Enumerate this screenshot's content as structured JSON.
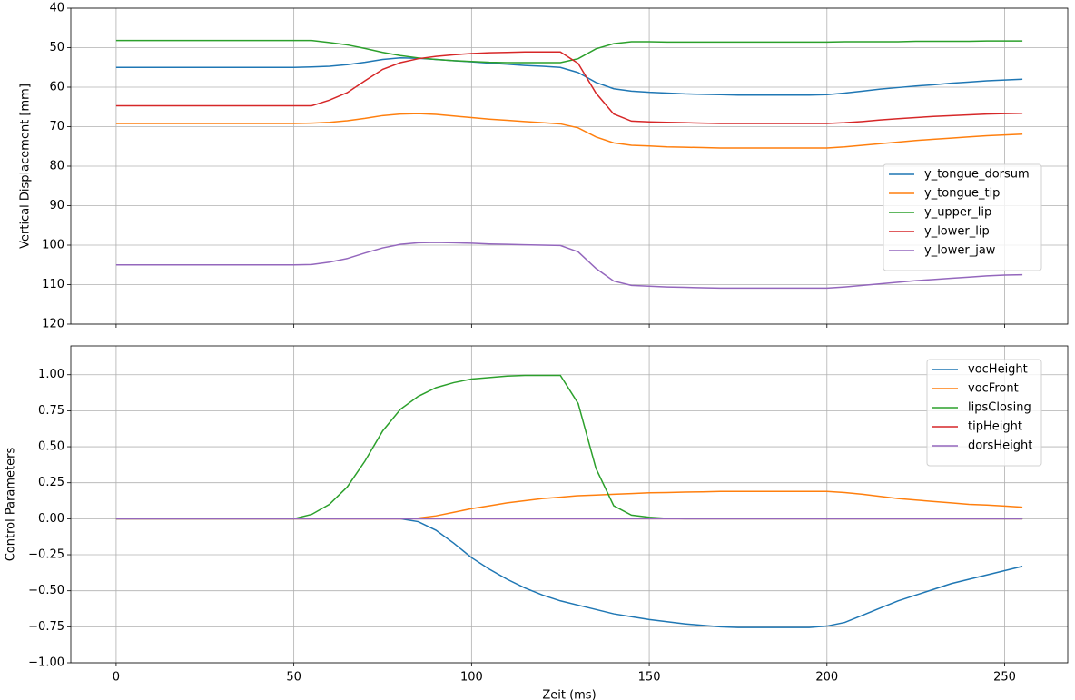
{
  "chart_data": [
    {
      "type": "line",
      "y_label": "Vertical Displacement [mm]",
      "x": [
        0,
        5,
        10,
        15,
        20,
        25,
        30,
        35,
        40,
        45,
        50,
        55,
        60,
        65,
        70,
        75,
        80,
        85,
        90,
        95,
        100,
        105,
        110,
        115,
        120,
        125,
        130,
        135,
        140,
        145,
        150,
        155,
        160,
        165,
        170,
        175,
        180,
        185,
        190,
        195,
        200,
        205,
        210,
        215,
        220,
        225,
        230,
        235,
        240,
        245,
        250,
        255
      ],
      "xlim": [
        -12.75,
        267.75
      ],
      "xticks": [
        0,
        50,
        100,
        150,
        200,
        250
      ],
      "ylim": [
        120,
        40
      ],
      "yticks": [
        40,
        50,
        60,
        70,
        80,
        90,
        100,
        110,
        120
      ],
      "y_inverted": true,
      "grid": true,
      "legend": "best",
      "series": [
        {
          "name": "y_tongue_dorsum",
          "color": "#1f77b4",
          "values": [
            55,
            55,
            55,
            55,
            55,
            55,
            55,
            55,
            55,
            55,
            55,
            54.9,
            54.7,
            54.3,
            53.7,
            53,
            52.6,
            52.7,
            53,
            53.3,
            53.6,
            53.9,
            54.2,
            54.5,
            54.7,
            55,
            56.3,
            58.8,
            60.4,
            61,
            61.3,
            61.5,
            61.7,
            61.8,
            61.9,
            62,
            62,
            62,
            62,
            62,
            61.9,
            61.5,
            61,
            60.5,
            60.1,
            59.7,
            59.4,
            59,
            58.7,
            58.4,
            58.2,
            58
          ]
        },
        {
          "name": "y_tongue_tip",
          "color": "#ff7f0e",
          "values": [
            69.2,
            69.2,
            69.2,
            69.2,
            69.2,
            69.2,
            69.2,
            69.2,
            69.2,
            69.2,
            69.2,
            69.1,
            68.9,
            68.5,
            67.9,
            67.2,
            66.8,
            66.7,
            66.9,
            67.3,
            67.7,
            68.1,
            68.4,
            68.7,
            69,
            69.3,
            70.3,
            72.6,
            74.1,
            74.7,
            74.9,
            75.1,
            75.2,
            75.3,
            75.4,
            75.4,
            75.4,
            75.4,
            75.4,
            75.4,
            75.4,
            75.1,
            74.7,
            74.3,
            73.9,
            73.5,
            73.2,
            72.9,
            72.6,
            72.3,
            72.1,
            71.9
          ]
        },
        {
          "name": "y_upper_lip",
          "color": "#2ca02c",
          "values": [
            48.2,
            48.2,
            48.2,
            48.2,
            48.2,
            48.2,
            48.2,
            48.2,
            48.2,
            48.2,
            48.2,
            48.2,
            48.7,
            49.3,
            50.2,
            51.2,
            52,
            52.6,
            53,
            53.3,
            53.5,
            53.7,
            53.8,
            53.8,
            53.8,
            53.8,
            52.8,
            50.3,
            49,
            48.5,
            48.5,
            48.6,
            48.6,
            48.6,
            48.6,
            48.6,
            48.6,
            48.6,
            48.6,
            48.6,
            48.6,
            48.5,
            48.5,
            48.5,
            48.5,
            48.4,
            48.4,
            48.4,
            48.4,
            48.3,
            48.3,
            48.3
          ]
        },
        {
          "name": "y_lower_lip",
          "color": "#d62728",
          "values": [
            64.7,
            64.7,
            64.7,
            64.7,
            64.7,
            64.7,
            64.7,
            64.7,
            64.7,
            64.7,
            64.7,
            64.7,
            63.3,
            61.4,
            58.4,
            55.5,
            53.8,
            52.8,
            52.2,
            51.8,
            51.5,
            51.3,
            51.2,
            51.1,
            51.1,
            51.1,
            54,
            61.5,
            66.8,
            68.6,
            68.8,
            68.9,
            69,
            69.1,
            69.2,
            69.2,
            69.2,
            69.2,
            69.2,
            69.2,
            69.2,
            69,
            68.7,
            68.3,
            68,
            67.7,
            67.4,
            67.2,
            67,
            66.8,
            66.7,
            66.6
          ]
        },
        {
          "name": "y_lower_jaw",
          "color": "#9467bd",
          "values": [
            105,
            105,
            105,
            105,
            105,
            105,
            105,
            105,
            105,
            105,
            105,
            104.9,
            104.3,
            103.4,
            102,
            100.7,
            99.8,
            99.4,
            99.3,
            99.4,
            99.5,
            99.7,
            99.8,
            99.9,
            100,
            100.1,
            101.7,
            105.9,
            109.1,
            110.2,
            110.4,
            110.6,
            110.7,
            110.8,
            110.9,
            110.9,
            110.9,
            110.9,
            110.9,
            110.9,
            110.9,
            110.6,
            110.2,
            109.8,
            109.4,
            109,
            108.7,
            108.4,
            108.1,
            107.8,
            107.6,
            107.5
          ]
        }
      ]
    },
    {
      "type": "line",
      "x_label": "Zeit (ms)",
      "y_label": "Control Parameters",
      "x": [
        0,
        5,
        10,
        15,
        20,
        25,
        30,
        35,
        40,
        45,
        50,
        55,
        60,
        65,
        70,
        75,
        80,
        85,
        90,
        95,
        100,
        105,
        110,
        115,
        120,
        125,
        130,
        135,
        140,
        145,
        150,
        155,
        160,
        165,
        170,
        175,
        180,
        185,
        190,
        195,
        200,
        205,
        210,
        215,
        220,
        225,
        230,
        235,
        240,
        245,
        250,
        255
      ],
      "xlim": [
        -12.75,
        267.75
      ],
      "xticks": [
        0,
        50,
        100,
        150,
        200,
        250
      ],
      "ylim": [
        -1,
        1.2
      ],
      "yticks": [
        {
          "value": -1,
          "label": "−1.00"
        },
        {
          "value": -0.75,
          "label": "−0.75"
        },
        {
          "value": -0.5,
          "label": "−0.50"
        },
        {
          "value": -0.25,
          "label": "−0.25"
        },
        {
          "value": 0,
          "label": "0.00"
        },
        {
          "value": 0.25,
          "label": "0.25"
        },
        {
          "value": 0.5,
          "label": "0.50"
        },
        {
          "value": 0.75,
          "label": "0.75"
        },
        {
          "value": 1,
          "label": "1.00"
        }
      ],
      "grid": true,
      "legend": "upper right",
      "series": [
        {
          "name": "vocHeight",
          "color": "#1f77b4",
          "values": [
            0,
            0,
            0,
            0,
            0,
            0,
            0,
            0,
            0,
            0,
            0,
            0,
            0,
            0,
            0,
            0,
            0,
            -0.02,
            -0.08,
            -0.17,
            -0.27,
            -0.35,
            -0.42,
            -0.48,
            -0.53,
            -0.57,
            -0.6,
            -0.63,
            -0.66,
            -0.68,
            -0.7,
            -0.715,
            -0.73,
            -0.74,
            -0.75,
            -0.755,
            -0.755,
            -0.755,
            -0.755,
            -0.755,
            -0.745,
            -0.72,
            -0.67,
            -0.62,
            -0.57,
            -0.53,
            -0.49,
            -0.45,
            -0.42,
            -0.39,
            -0.36,
            -0.33
          ]
        },
        {
          "name": "vocFront",
          "color": "#ff7f0e",
          "values": [
            0,
            0,
            0,
            0,
            0,
            0,
            0,
            0,
            0,
            0,
            0,
            0,
            0,
            0,
            0,
            0,
            0,
            0.005,
            0.02,
            0.045,
            0.07,
            0.09,
            0.11,
            0.125,
            0.14,
            0.15,
            0.16,
            0.165,
            0.17,
            0.175,
            0.18,
            0.182,
            0.185,
            0.187,
            0.19,
            0.19,
            0.19,
            0.19,
            0.19,
            0.19,
            0.19,
            0.182,
            0.17,
            0.155,
            0.14,
            0.13,
            0.12,
            0.11,
            0.1,
            0.095,
            0.088,
            0.08
          ]
        },
        {
          "name": "lipsClosing",
          "color": "#2ca02c",
          "values": [
            0,
            0,
            0,
            0,
            0,
            0,
            0,
            0,
            0,
            0,
            0,
            0.03,
            0.1,
            0.22,
            0.4,
            0.61,
            0.76,
            0.85,
            0.91,
            0.945,
            0.97,
            0.98,
            0.99,
            0.995,
            0.995,
            0.995,
            0.8,
            0.35,
            0.09,
            0.025,
            0.01,
            0.002,
            0,
            0,
            0,
            0,
            0,
            0,
            0,
            0,
            0,
            0,
            0,
            0,
            0,
            0,
            0,
            0,
            0,
            0,
            0,
            0
          ]
        },
        {
          "name": "tipHeight",
          "color": "#d62728",
          "values": [
            0,
            0,
            0,
            0,
            0,
            0,
            0,
            0,
            0,
            0,
            0,
            0,
            0,
            0,
            0,
            0,
            0,
            0,
            0,
            0,
            0,
            0,
            0,
            0,
            0,
            0,
            0,
            0,
            0,
            0,
            0,
            0,
            0,
            0,
            0,
            0,
            0,
            0,
            0,
            0,
            0,
            0,
            0,
            0,
            0,
            0,
            0,
            0,
            0,
            0,
            0,
            0
          ]
        },
        {
          "name": "dorsHeight",
          "color": "#9467bd",
          "values": [
            0,
            0,
            0,
            0,
            0,
            0,
            0,
            0,
            0,
            0,
            0,
            0,
            0,
            0,
            0,
            0,
            0,
            0,
            0,
            0,
            0,
            0,
            0,
            0,
            0,
            0,
            0,
            0,
            0,
            0,
            0,
            0,
            0,
            0,
            0,
            0,
            0,
            0,
            0,
            0,
            0,
            0,
            0,
            0,
            0,
            0,
            0,
            0,
            0,
            0,
            0,
            0
          ]
        }
      ]
    }
  ]
}
